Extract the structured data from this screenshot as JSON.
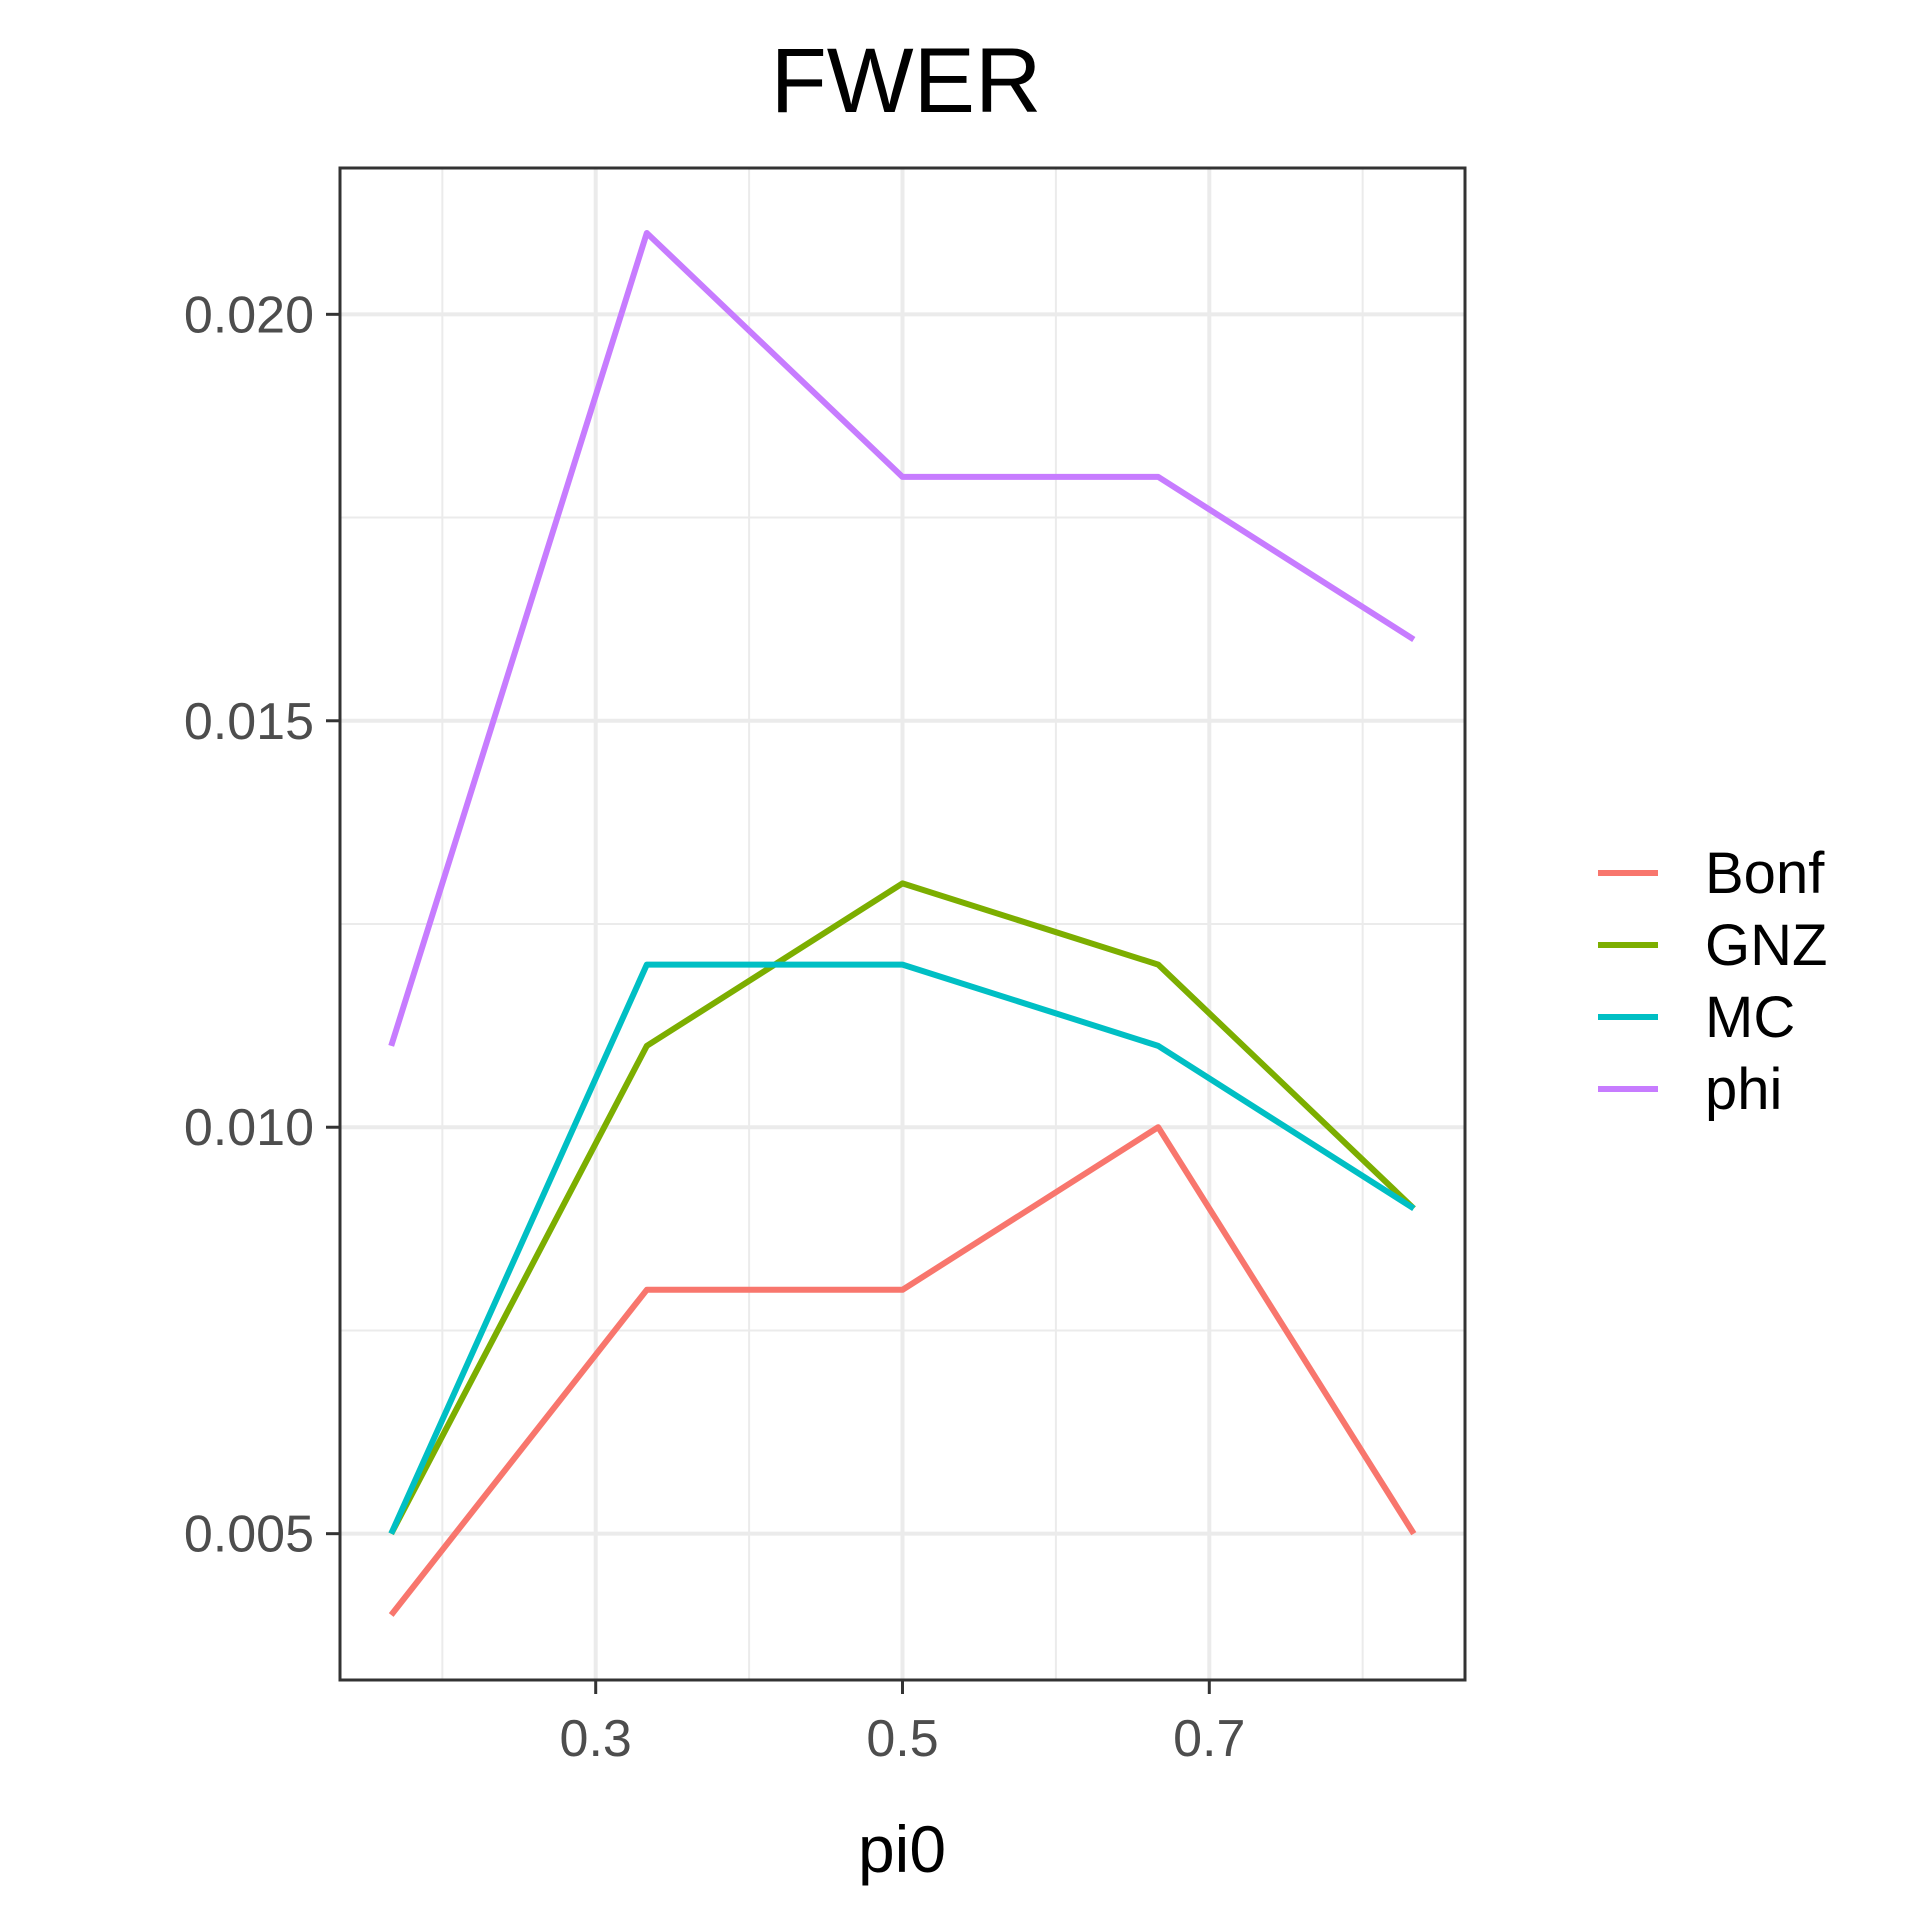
{
  "chart_data": {
    "type": "line",
    "title": "FWER",
    "xlabel": "pi0",
    "ylabel": "",
    "x": [
      0.1667,
      0.3333,
      0.5,
      0.6667,
      0.8333
    ],
    "xlim": [
      0.1333,
      0.8667
    ],
    "ylim": [
      0.0032,
      0.0218
    ],
    "x_ticks": [
      0.3,
      0.5,
      0.7
    ],
    "x_tick_labels": [
      "0.3",
      "0.5",
      "0.7"
    ],
    "x_minor_ticks": [
      0.2,
      0.4,
      0.6,
      0.8
    ],
    "y_ticks": [
      0.005,
      0.01,
      0.015,
      0.02
    ],
    "y_tick_labels": [
      "0.005",
      "0.010",
      "0.015",
      "0.020"
    ],
    "y_minor_ticks": [
      0.0075,
      0.0125,
      0.0175
    ],
    "grid": true,
    "legend_position": "right",
    "series": [
      {
        "name": "Bonf",
        "color": "#F8766D",
        "values": [
          0.004,
          0.008,
          0.008,
          0.01,
          0.005
        ]
      },
      {
        "name": "GNZ",
        "color": "#7CAE00",
        "values": [
          0.005,
          0.011,
          0.013,
          0.012,
          0.009
        ]
      },
      {
        "name": "MC",
        "color": "#00BFC4",
        "values": [
          0.005,
          0.012,
          0.012,
          0.011,
          0.009
        ]
      },
      {
        "name": "phi",
        "color": "#C77CFF",
        "values": [
          0.011,
          0.021,
          0.018,
          0.018,
          0.016
        ]
      }
    ]
  }
}
